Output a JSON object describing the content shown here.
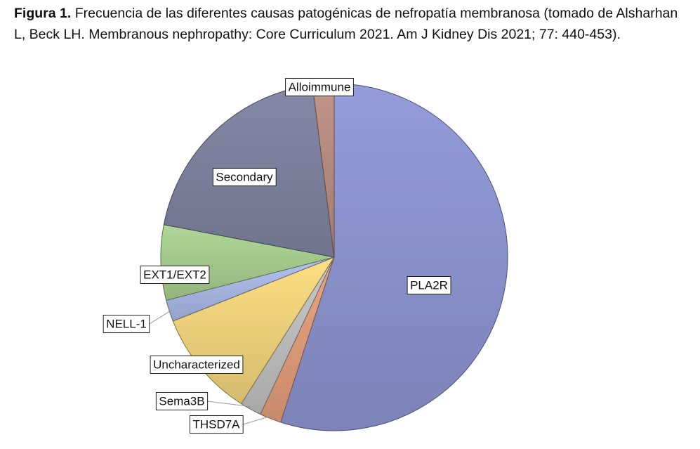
{
  "caption": {
    "label": "Figura 1.",
    "text": "Frecuencia de las diferentes causas patogénicas de nefropatía membranosa (tomado de Alsharhan L, Beck LH. Membranous nephropathy: Core Curriculum 2021. Am J Kidney Dis 2021; 77: 440-453)."
  },
  "chart_data": {
    "type": "pie",
    "title": "",
    "slices": [
      {
        "label": "PLA2R",
        "value": 55,
        "color": "#8a92cc"
      },
      {
        "label": "THSD7A",
        "value": 2,
        "color": "#dd9a78"
      },
      {
        "label": "Sema3B",
        "value": 2,
        "color": "#bcbcbc"
      },
      {
        "label": "Uncharacterized",
        "value": 10,
        "color": "#ecd07a"
      },
      {
        "label": "NELL-1",
        "value": 2,
        "color": "#a6b5e0"
      },
      {
        "label": "EXT1/EXT2",
        "value": 7,
        "color": "#a4c98c"
      },
      {
        "label": "Secondary",
        "value": 20,
        "color": "#7c809c"
      },
      {
        "label": "Alloimmune",
        "value": 2,
        "color": "#b48a80"
      }
    ],
    "start": "12 o'clock",
    "direction": "clockwise",
    "legend": "none",
    "data_labels": "boxed category names"
  }
}
